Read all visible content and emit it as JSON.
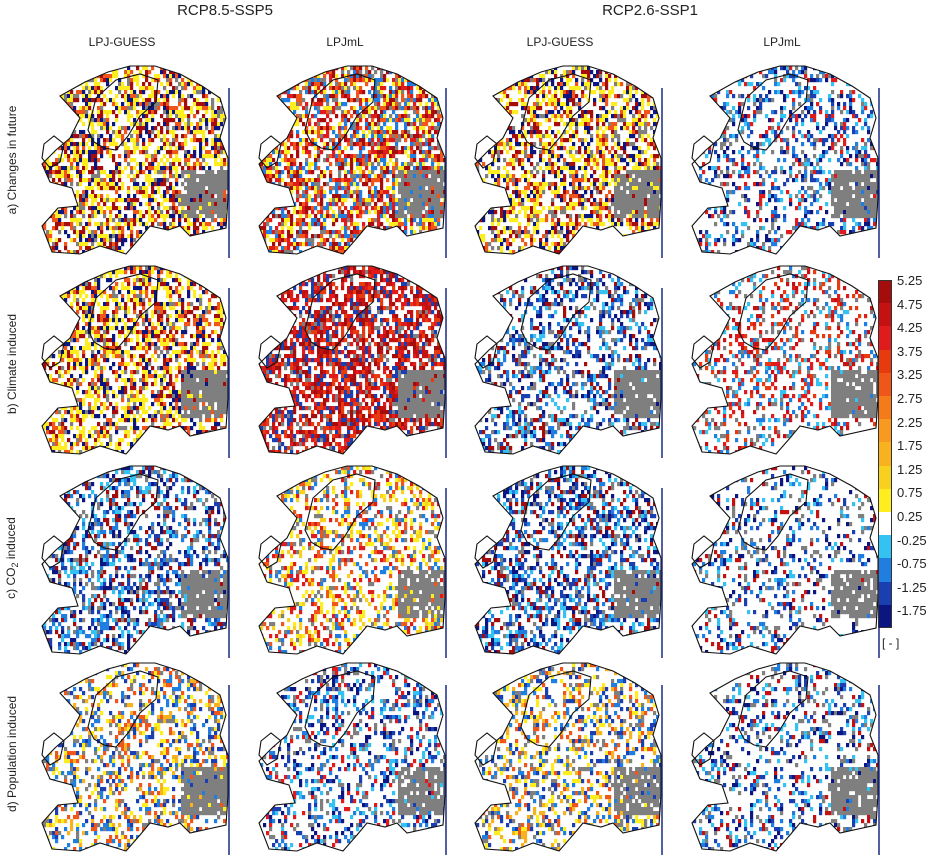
{
  "scenarios": [
    "RCP8.5-SSP5",
    "RCP2.6-SSP1"
  ],
  "models": [
    "LPJ-GUESS",
    "LPJmL",
    "LPJ-GUESS",
    "LPJmL"
  ],
  "rows": [
    {
      "label": "a) Changes in future"
    },
    {
      "label": "b) Climate induced"
    },
    {
      "label_prefix": "c) CO",
      "label_sub": "2",
      "label_suffix": " induced"
    },
    {
      "label": "d) Population induced"
    }
  ],
  "colorbar": {
    "ticks": [
      "5.25",
      "4.75",
      "4.25",
      "3.75",
      "3.25",
      "2.75",
      "2.25",
      "1.75",
      "1.25",
      "0.75",
      "0.25",
      "-0.25",
      "-0.75",
      "-1.25",
      "-1.75"
    ],
    "colors": [
      "#a50d0d",
      "#c41212",
      "#e01b1b",
      "#e83a0f",
      "#f0561a",
      "#f57a1a",
      "#f89a1f",
      "#f8b21f",
      "#f8d01f",
      "#ffee1f",
      "#ffffff",
      "#33c2f2",
      "#1f7ee0",
      "#1a3fb0",
      "#0c1680"
    ],
    "unit": "[ - ]"
  },
  "map_colors": {
    "land_masked": "#7f7f7f",
    "coast": "#111111"
  }
}
